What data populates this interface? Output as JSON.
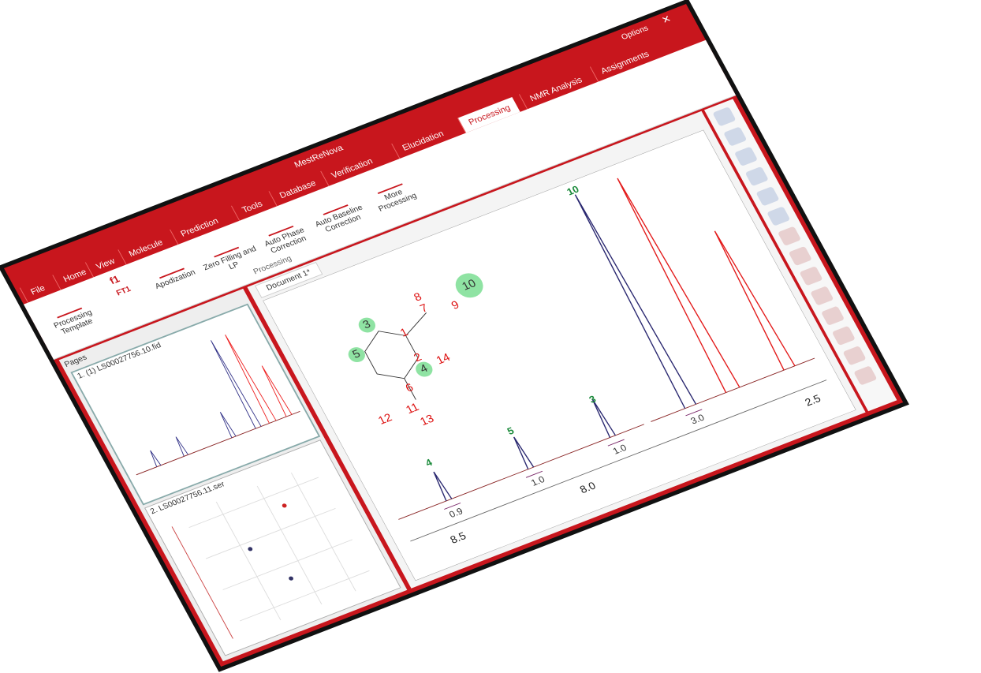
{
  "app_title": "MestReNova",
  "window_controls": {
    "options": "Options"
  },
  "menu_tabs": [
    "File",
    "Home",
    "View",
    "Molecule",
    "Prediction",
    "Tools",
    "Database",
    "Verification",
    "Elucidation",
    "Processing",
    "NMR Analysis",
    "Assignments"
  ],
  "ribbon": {
    "f1": "f1",
    "ft1": "FT1",
    "buttons": [
      "Processing Template",
      "Apodization",
      "Zero Filling and LP",
      "Auto Phase Correction",
      "Auto Baseline Correction",
      "More Processing"
    ],
    "group_label": "Processing"
  },
  "pages_panel": {
    "title": "Pages",
    "pages": [
      {
        "label": "1. (1) LS00027756.10.fid"
      },
      {
        "label": "2. LS00027756.11.ser"
      }
    ]
  },
  "document_tab": "Document 1*",
  "spectrum": {
    "atoms": [
      "1",
      "2",
      "3",
      "4",
      "5",
      "6",
      "7",
      "8",
      "9",
      "10",
      "11",
      "12",
      "13",
      "14"
    ],
    "peak_labels": [
      "4",
      "5",
      "3",
      "10"
    ],
    "integrals": [
      "0.9",
      "1.0",
      "1.0",
      "3.0"
    ],
    "axis_ticks": [
      "8.5",
      "8.0",
      "2.5"
    ]
  }
}
